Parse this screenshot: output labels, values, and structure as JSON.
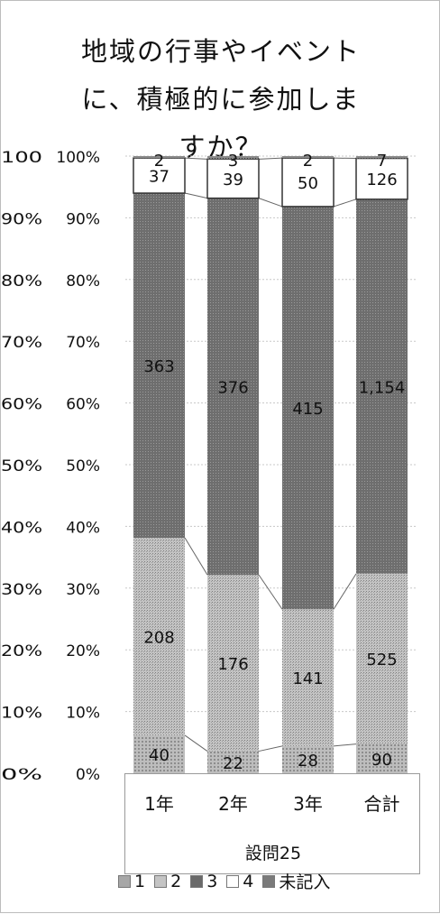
{
  "title_lines": [
    "地域の行事やイベント",
    "に、積極的に参加しま",
    "すか？"
  ],
  "axis_left_labels": [
    "100%",
    "90%",
    "80%",
    "70%",
    "60%",
    "50%",
    "40%",
    "30%",
    "20%",
    "10%",
    "0%"
  ],
  "axis_clipped_labels": [
    "100%",
    "90%",
    "80%",
    "70%",
    "60%",
    "50%",
    "40%",
    "30%",
    "20%",
    "10%",
    "0%"
  ],
  "colors": {
    "s1": "#a7a7a7",
    "s2": "#a9a9a9",
    "s3": "#6a6a6a",
    "s4": "#ffffff",
    "s5": "#7a7a7a"
  },
  "chart_data": {
    "type": "bar",
    "stacked": "percent",
    "categories": [
      "1年",
      "2年",
      "3年",
      "合計"
    ],
    "series": [
      {
        "name": "1",
        "values": [
          40,
          22,
          28,
          90
        ]
      },
      {
        "name": "2",
        "values": [
          208,
          176,
          141,
          525
        ]
      },
      {
        "name": "3",
        "values": [
          363,
          376,
          415,
          1154
        ]
      },
      {
        "name": "4",
        "values": [
          37,
          39,
          50,
          126
        ]
      },
      {
        "name": "未記入",
        "values": [
          2,
          3,
          2,
          7
        ]
      }
    ],
    "data_labels": [
      [
        "40",
        "208",
        "363",
        "37",
        "2"
      ],
      [
        "22",
        "176",
        "376",
        "39",
        "3"
      ],
      [
        "28",
        "141",
        "415",
        "50",
        "2"
      ],
      [
        "90",
        "525",
        "1,154",
        "126",
        "7"
      ]
    ],
    "xlabel": "設問25",
    "ylabel": "",
    "ylim": [
      0,
      100
    ],
    "legend_position": "bottom",
    "grid": true
  }
}
